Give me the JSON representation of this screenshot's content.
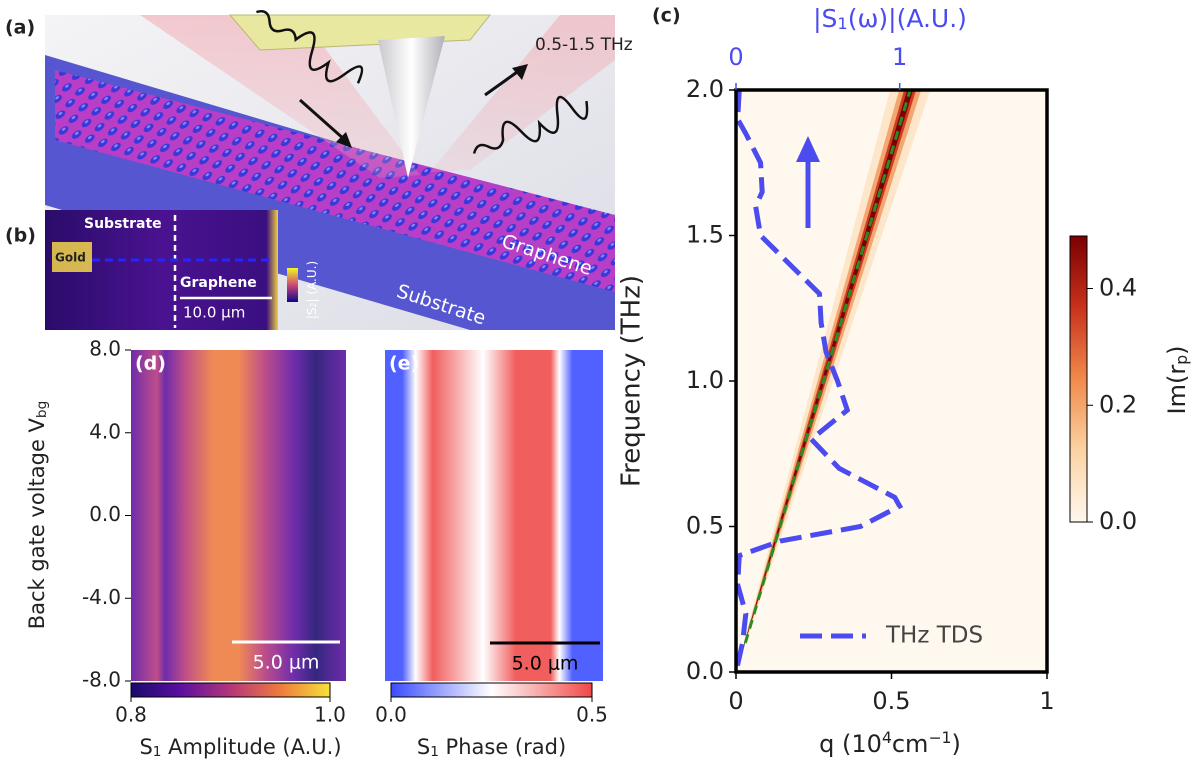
{
  "panel_labels": [
    "(a)",
    "(b)",
    "(c)",
    "(d)",
    "(e)"
  ],
  "illustration": {
    "beam_label": "0.5-1.5 THz",
    "graphene": "Graphene",
    "substrate": "Substrate"
  },
  "inset_b": {
    "substrate": "Substrate",
    "gold": "Gold",
    "graphene": "Graphene",
    "scale_bar": "10.0 μm",
    "colorbar_label": [
      "|S",
      "2",
      "| (A.U.)"
    ]
  },
  "chart_data": [
    {
      "type": "heatmap_line",
      "x2label": [
        "|S",
        "1",
        "(ω)|(A.U.)"
      ],
      "ylabel": "Frequency (THz)",
      "xlabel": [
        "q (10",
        "4",
        "cm",
        "−1",
        ")"
      ],
      "colorbar_label": [
        "Im(r",
        "p",
        ")"
      ],
      "xlim": [
        0,
        1
      ],
      "xticks": [
        0,
        0.5,
        1
      ],
      "ylim": [
        0,
        2
      ],
      "yticks": [
        {
          "value": 0,
          "label": "0.0"
        },
        0.5,
        {
          "value": 1,
          "label": "1.0"
        },
        1.5,
        {
          "value": 2,
          "label": "2.0"
        }
      ],
      "x2lim": [
        0,
        1.9
      ],
      "x2ticks": [
        0,
        1
      ],
      "clim": [
        0,
        0.49
      ],
      "cticks": [
        {
          "value": 0,
          "label": "0.0"
        },
        0.2,
        0.4
      ],
      "colormap": [
        "#fff8ee",
        "#fbd3a4",
        "#f08a4b",
        "#c8321c",
        "#7a0000"
      ],
      "ridge": {
        "x": [
          0,
          0.56
        ],
        "y": [
          0,
          2.0
        ]
      },
      "fit_line": {
        "x": [
          0.03,
          0.56
        ],
        "y": [
          0.1,
          2.0
        ],
        "color": "#2e8b22"
      },
      "series": [
        {
          "name": "THz TDS",
          "color": "#4b4bf0",
          "axis": "x2",
          "frequency": [
            2.0,
            1.9,
            1.85,
            1.75,
            1.65,
            1.6,
            1.5,
            1.4,
            1.3,
            1.2,
            1.1,
            1.0,
            0.9,
            0.8,
            0.7,
            0.6,
            0.57,
            0.5,
            0.45,
            0.4,
            0.3,
            0.2,
            0.1,
            0
          ],
          "values": [
            0.02,
            0.01,
            0.06,
            0.15,
            0.16,
            0.12,
            0.15,
            0.33,
            0.51,
            0.52,
            0.55,
            0.62,
            0.68,
            0.46,
            0.63,
            0.97,
            1.0,
            0.76,
            0.27,
            0.02,
            0.01,
            0.06,
            0.04,
            0
          ]
        }
      ],
      "legend": "lower right"
    },
    {
      "type": "heatmap",
      "ylabel": [
        "Back gate voltage V",
        "bg"
      ],
      "xlabel": [
        "S",
        "1",
        " Amplitude (A.U.)"
      ],
      "ylim": [
        -8,
        8
      ],
      "yticks": [
        {
          "value": 8,
          "label": "8.0"
        },
        {
          "value": 4,
          "label": "4.0"
        },
        {
          "value": 0,
          "label": "0.0"
        },
        {
          "value": -4,
          "label": "-4.0"
        },
        {
          "value": -8,
          "label": "-8.0"
        }
      ],
      "clim": [
        0.8,
        1.0
      ],
      "cticks": [
        0.8,
        {
          "value": 1,
          "label": "1.0"
        }
      ],
      "colormap": [
        "#1a0a6e",
        "#5b0fa0",
        "#b5367a",
        "#ee7a3e",
        "#f6e23a"
      ],
      "scale_bar": "5.0 μm"
    },
    {
      "type": "heatmap",
      "xlabel": [
        "S",
        "1",
        " Phase (rad)"
      ],
      "clim": [
        0,
        0.5
      ],
      "cticks": [
        {
          "value": 0,
          "label": "0.0"
        },
        0.5
      ],
      "colormap": [
        "#3a4cff",
        "#ffffff",
        "#f04848"
      ],
      "scale_bar": "5.0 μm"
    }
  ]
}
